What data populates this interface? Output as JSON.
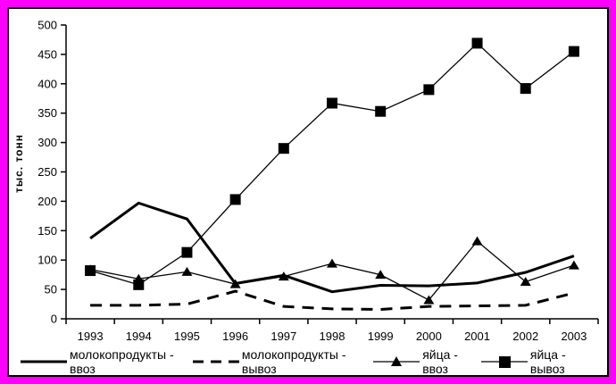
{
  "frame": {
    "outer_border_color": "#ff00ff",
    "panel_border_color": "#000000",
    "background_color": "#ffffff"
  },
  "chart_data": {
    "type": "line",
    "title": "",
    "xlabel": "",
    "ylabel": "тыс. тонн",
    "color": "#000000",
    "grid": false,
    "legend_position": "bottom",
    "ylim": [
      0,
      500
    ],
    "ytick_step": 50,
    "x": [
      "1993",
      "1994",
      "1995",
      "1996",
      "1997",
      "1998",
      "1999",
      "2000",
      "2001",
      "2002",
      "2003"
    ],
    "series": [
      {
        "name": "молокопродукты - ввоз",
        "style": "solid-thick",
        "marker": "none",
        "values": [
          137,
          197,
          170,
          60,
          74,
          46,
          57,
          56,
          61,
          79,
          107
        ]
      },
      {
        "name": "молокопродукты - вывоз",
        "style": "dashed-thick",
        "marker": "none",
        "values": [
          23,
          23,
          25,
          47,
          21,
          17,
          16,
          21,
          22,
          23,
          44
        ]
      },
      {
        "name": "яйца - ввоз",
        "style": "solid-thin",
        "marker": "triangle",
        "values": [
          84,
          68,
          80,
          59,
          72,
          94,
          75,
          32,
          132,
          63,
          91
        ]
      },
      {
        "name": "яйца - вывоз",
        "style": "solid-thin",
        "marker": "square",
        "values": [
          82,
          58,
          113,
          203,
          290,
          367,
          353,
          390,
          469,
          392,
          455
        ]
      }
    ]
  }
}
